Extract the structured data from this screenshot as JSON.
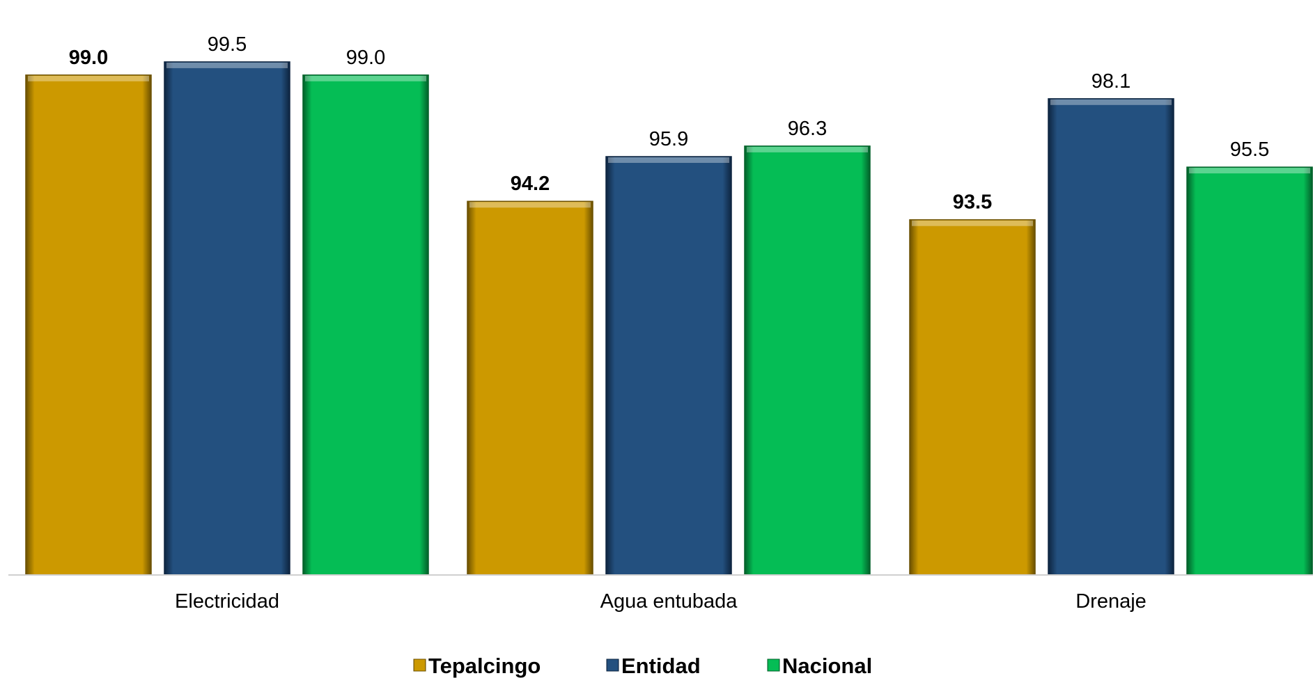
{
  "chart_data": {
    "type": "bar",
    "title": "",
    "xlabel": "",
    "ylabel": "",
    "categories": [
      "Electricidad",
      "Agua entubada",
      "Drenaje"
    ],
    "series": [
      {
        "name": "Tepalcingo",
        "values": [
          99.0,
          94.2,
          93.5
        ],
        "labels": [
          "99.0",
          "94.2",
          "93.5"
        ],
        "color": "#CC9900",
        "dark": "#6B5000",
        "bold": true
      },
      {
        "name": "Entidad",
        "values": [
          99.5,
          95.9,
          98.1
        ],
        "labels": [
          "99.5",
          "95.9",
          "98.1"
        ],
        "color": "#23507F",
        "dark": "#0E2540",
        "bold": false
      },
      {
        "name": "Nacional",
        "values": [
          99.0,
          96.3,
          95.5
        ],
        "labels": [
          "99.0",
          "96.3",
          "95.5"
        ],
        "color": "#05BD55",
        "dark": "#02602A",
        "bold": false
      }
    ],
    "ylim": [
      80,
      100
    ],
    "grid": false,
    "legend": "bottom-center"
  }
}
